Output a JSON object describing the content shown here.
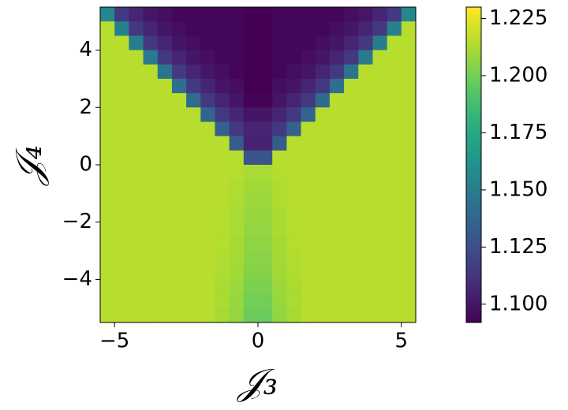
{
  "chart_data": {
    "type": "heatmap",
    "xlabel": "𝒥₃",
    "ylabel": "𝒥₄",
    "colormap": "viridis",
    "xlim": [
      -5.5,
      5.5
    ],
    "ylim": [
      -5.5,
      5.5
    ],
    "xticks": [
      {
        "value": -5,
        "label": "−5"
      },
      0,
      5
    ],
    "yticks": [
      {
        "value": -4,
        "label": "−4"
      },
      {
        "value": -2,
        "label": "−2"
      },
      0,
      2,
      4
    ],
    "clim": [
      1.092,
      1.23
    ],
    "cticks": [
      {
        "value": 1.1,
        "label": "1.100"
      },
      {
        "value": 1.125,
        "label": "1.125"
      },
      {
        "value": 1.15,
        "label": "1.150"
      },
      {
        "value": 1.175,
        "label": "1.175"
      },
      {
        "value": 1.2,
        "label": "1.200"
      },
      {
        "value": 1.225,
        "label": "1.225"
      }
    ],
    "x": [
      -5.25,
      -4.75,
      -4.25,
      -3.75,
      -3.25,
      -2.75,
      -2.25,
      -1.75,
      -1.25,
      -0.75,
      -0.25,
      0.25,
      0.75,
      1.25,
      1.75,
      2.25,
      2.75,
      3.25,
      3.75,
      4.25,
      4.75,
      5.25
    ],
    "y": [
      5.25,
      4.75,
      4.25,
      3.75,
      3.25,
      2.75,
      2.25,
      1.75,
      1.25,
      0.75,
      0.25,
      -0.25,
      -0.75,
      -1.25,
      -1.75,
      -2.25,
      -2.75,
      -3.25,
      -3.75,
      -4.25,
      -4.75,
      -5.25
    ],
    "z": [
      [
        1.155,
        1.115,
        1.106,
        1.1,
        1.097,
        1.094,
        1.094,
        1.094,
        1.094,
        1.094,
        1.092,
        1.092,
        1.094,
        1.094,
        1.094,
        1.094,
        1.094,
        1.097,
        1.1,
        1.106,
        1.115,
        1.155
      ],
      [
        1.215,
        1.152,
        1.115,
        1.106,
        1.1,
        1.097,
        1.094,
        1.094,
        1.094,
        1.094,
        1.092,
        1.092,
        1.094,
        1.094,
        1.094,
        1.094,
        1.097,
        1.1,
        1.106,
        1.115,
        1.152,
        1.215
      ],
      [
        1.215,
        1.215,
        1.15,
        1.115,
        1.106,
        1.1,
        1.097,
        1.094,
        1.094,
        1.094,
        1.092,
        1.092,
        1.094,
        1.094,
        1.094,
        1.097,
        1.1,
        1.106,
        1.115,
        1.15,
        1.215,
        1.215
      ],
      [
        1.215,
        1.215,
        1.215,
        1.148,
        1.115,
        1.106,
        1.1,
        1.097,
        1.094,
        1.094,
        1.092,
        1.092,
        1.094,
        1.094,
        1.097,
        1.1,
        1.106,
        1.115,
        1.148,
        1.215,
        1.215,
        1.215
      ],
      [
        1.215,
        1.215,
        1.215,
        1.215,
        1.145,
        1.115,
        1.106,
        1.1,
        1.097,
        1.094,
        1.092,
        1.092,
        1.094,
        1.097,
        1.1,
        1.106,
        1.115,
        1.145,
        1.215,
        1.215,
        1.215,
        1.215
      ],
      [
        1.215,
        1.215,
        1.215,
        1.215,
        1.215,
        1.142,
        1.115,
        1.106,
        1.1,
        1.097,
        1.092,
        1.092,
        1.097,
        1.1,
        1.106,
        1.115,
        1.142,
        1.215,
        1.215,
        1.215,
        1.215,
        1.215
      ],
      [
        1.215,
        1.215,
        1.215,
        1.215,
        1.215,
        1.215,
        1.14,
        1.115,
        1.106,
        1.1,
        1.093,
        1.093,
        1.1,
        1.106,
        1.115,
        1.14,
        1.215,
        1.215,
        1.215,
        1.215,
        1.215,
        1.215
      ],
      [
        1.215,
        1.215,
        1.215,
        1.215,
        1.215,
        1.215,
        1.215,
        1.137,
        1.115,
        1.106,
        1.1,
        1.1,
        1.106,
        1.115,
        1.137,
        1.215,
        1.215,
        1.215,
        1.215,
        1.215,
        1.215,
        1.215
      ],
      [
        1.215,
        1.215,
        1.215,
        1.215,
        1.215,
        1.215,
        1.215,
        1.215,
        1.135,
        1.115,
        1.106,
        1.106,
        1.115,
        1.135,
        1.215,
        1.215,
        1.215,
        1.215,
        1.215,
        1.215,
        1.215,
        1.215
      ],
      [
        1.215,
        1.215,
        1.215,
        1.215,
        1.215,
        1.215,
        1.215,
        1.215,
        1.215,
        1.132,
        1.105,
        1.105,
        1.132,
        1.215,
        1.215,
        1.215,
        1.215,
        1.215,
        1.215,
        1.215,
        1.215,
        1.215
      ],
      [
        1.215,
        1.215,
        1.215,
        1.215,
        1.215,
        1.215,
        1.215,
        1.215,
        1.215,
        1.215,
        1.128,
        1.128,
        1.215,
        1.215,
        1.215,
        1.215,
        1.215,
        1.215,
        1.215,
        1.215,
        1.215,
        1.215
      ],
      [
        1.215,
        1.215,
        1.215,
        1.215,
        1.215,
        1.215,
        1.215,
        1.215,
        1.215,
        1.214,
        1.212,
        1.212,
        1.214,
        1.215,
        1.215,
        1.215,
        1.215,
        1.215,
        1.215,
        1.215,
        1.215,
        1.215
      ],
      [
        1.215,
        1.215,
        1.215,
        1.215,
        1.215,
        1.215,
        1.215,
        1.215,
        1.215,
        1.213,
        1.21,
        1.21,
        1.213,
        1.215,
        1.215,
        1.215,
        1.215,
        1.215,
        1.215,
        1.215,
        1.215,
        1.215
      ],
      [
        1.215,
        1.215,
        1.215,
        1.215,
        1.215,
        1.215,
        1.215,
        1.215,
        1.215,
        1.213,
        1.209,
        1.209,
        1.213,
        1.215,
        1.215,
        1.215,
        1.215,
        1.215,
        1.215,
        1.215,
        1.215,
        1.215
      ],
      [
        1.215,
        1.215,
        1.215,
        1.215,
        1.215,
        1.215,
        1.215,
        1.215,
        1.214,
        1.212,
        1.208,
        1.208,
        1.212,
        1.214,
        1.215,
        1.215,
        1.215,
        1.215,
        1.215,
        1.215,
        1.215,
        1.215
      ],
      [
        1.215,
        1.215,
        1.215,
        1.215,
        1.215,
        1.215,
        1.215,
        1.215,
        1.214,
        1.212,
        1.207,
        1.207,
        1.212,
        1.214,
        1.215,
        1.215,
        1.215,
        1.215,
        1.215,
        1.215,
        1.215,
        1.215
      ],
      [
        1.215,
        1.215,
        1.215,
        1.215,
        1.215,
        1.215,
        1.215,
        1.215,
        1.214,
        1.211,
        1.206,
        1.206,
        1.211,
        1.214,
        1.215,
        1.215,
        1.215,
        1.215,
        1.215,
        1.215,
        1.215,
        1.215
      ],
      [
        1.215,
        1.215,
        1.215,
        1.215,
        1.215,
        1.215,
        1.215,
        1.215,
        1.213,
        1.211,
        1.205,
        1.205,
        1.211,
        1.213,
        1.215,
        1.215,
        1.215,
        1.215,
        1.215,
        1.215,
        1.215,
        1.215
      ],
      [
        1.215,
        1.215,
        1.215,
        1.215,
        1.215,
        1.215,
        1.215,
        1.215,
        1.213,
        1.21,
        1.204,
        1.204,
        1.21,
        1.213,
        1.215,
        1.215,
        1.215,
        1.215,
        1.215,
        1.215,
        1.215,
        1.215
      ],
      [
        1.215,
        1.215,
        1.215,
        1.215,
        1.215,
        1.215,
        1.215,
        1.215,
        1.212,
        1.209,
        1.202,
        1.202,
        1.209,
        1.212,
        1.215,
        1.215,
        1.215,
        1.215,
        1.215,
        1.215,
        1.215,
        1.215
      ],
      [
        1.215,
        1.215,
        1.215,
        1.215,
        1.215,
        1.215,
        1.215,
        1.215,
        1.212,
        1.208,
        1.2,
        1.2,
        1.208,
        1.212,
        1.215,
        1.215,
        1.215,
        1.215,
        1.215,
        1.215,
        1.215,
        1.215
      ],
      [
        1.215,
        1.215,
        1.215,
        1.215,
        1.215,
        1.215,
        1.215,
        1.215,
        1.211,
        1.207,
        1.198,
        1.198,
        1.207,
        1.211,
        1.215,
        1.215,
        1.215,
        1.215,
        1.215,
        1.215,
        1.215,
        1.215
      ]
    ]
  }
}
